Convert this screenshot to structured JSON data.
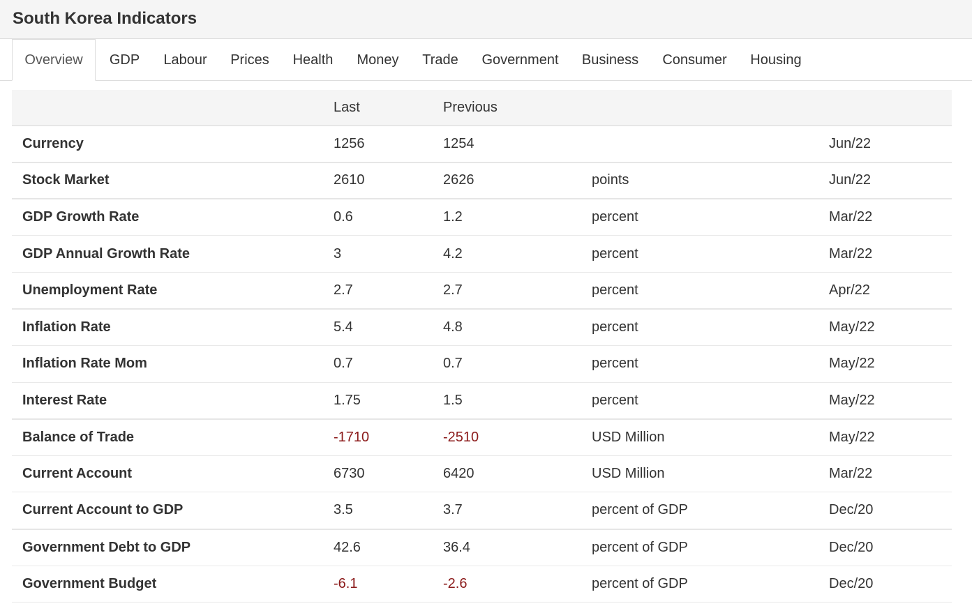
{
  "page": {
    "title": "South Korea Indicators"
  },
  "tabs": [
    {
      "label": "Overview",
      "active": true
    },
    {
      "label": "GDP"
    },
    {
      "label": "Labour"
    },
    {
      "label": "Prices"
    },
    {
      "label": "Health"
    },
    {
      "label": "Money"
    },
    {
      "label": "Trade"
    },
    {
      "label": "Government"
    },
    {
      "label": "Business"
    },
    {
      "label": "Consumer"
    },
    {
      "label": "Housing"
    }
  ],
  "table": {
    "headers": [
      "",
      "Last",
      "Previous",
      "",
      ""
    ],
    "rows": [
      {
        "name": "Currency",
        "last": "1256",
        "previous": "1254",
        "unit": "",
        "date": "Jun/22"
      },
      {
        "name": "Stock Market",
        "last": "2610",
        "previous": "2626",
        "unit": "points",
        "date": "Jun/22"
      },
      {
        "name": "GDP Growth Rate",
        "last": "0.6",
        "previous": "1.2",
        "unit": "percent",
        "date": "Mar/22"
      },
      {
        "name": "GDP Annual Growth Rate",
        "last": "3",
        "previous": "4.2",
        "unit": "percent",
        "date": "Mar/22"
      },
      {
        "name": "Unemployment Rate",
        "last": "2.7",
        "previous": "2.7",
        "unit": "percent",
        "date": "Apr/22"
      },
      {
        "name": "Inflation Rate",
        "last": "5.4",
        "previous": "4.8",
        "unit": "percent",
        "date": "May/22"
      },
      {
        "name": "Inflation Rate Mom",
        "last": "0.7",
        "previous": "0.7",
        "unit": "percent",
        "date": "May/22"
      },
      {
        "name": "Interest Rate",
        "last": "1.75",
        "previous": "1.5",
        "unit": "percent",
        "date": "May/22"
      },
      {
        "name": "Balance of Trade",
        "last": "-1710",
        "previous": "-2510",
        "unit": "USD Million",
        "date": "May/22",
        "negative": true
      },
      {
        "name": "Current Account",
        "last": "6730",
        "previous": "6420",
        "unit": "USD Million",
        "date": "Mar/22"
      },
      {
        "name": "Current Account to GDP",
        "last": "3.5",
        "previous": "3.7",
        "unit": "percent of GDP",
        "date": "Dec/20"
      },
      {
        "name": "Government Debt to GDP",
        "last": "42.6",
        "previous": "36.4",
        "unit": "percent of GDP",
        "date": "Dec/20"
      },
      {
        "name": "Government Budget",
        "last": "-6.1",
        "previous": "-2.6",
        "unit": "percent of GDP",
        "date": "Dec/20",
        "negative": true
      }
    ]
  },
  "colors": {
    "negative": "#8b1a1a",
    "header_bg": "#f5f5f5",
    "text": "#333333"
  }
}
